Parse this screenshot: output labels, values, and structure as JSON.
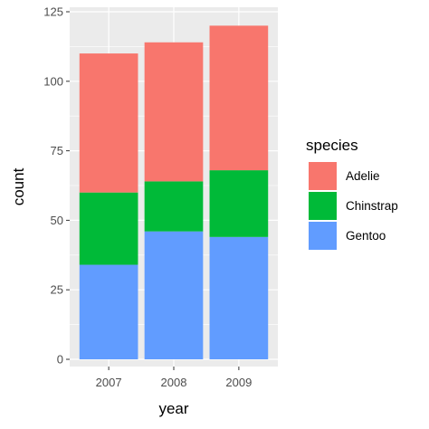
{
  "chart_data": {
    "type": "bar",
    "stacked": true,
    "xlabel": "year",
    "ylabel": "count",
    "categories": [
      "2007",
      "2008",
      "2009"
    ],
    "ylim": [
      0,
      125
    ],
    "y_ticks": [
      0,
      25,
      50,
      75,
      100,
      125
    ],
    "series": [
      {
        "name": "Gentoo",
        "color": "#619CFF",
        "values": [
          34,
          46,
          44
        ]
      },
      {
        "name": "Chinstrap",
        "color": "#00BA38",
        "values": [
          26,
          18,
          24
        ]
      },
      {
        "name": "Adelie",
        "color": "#F8766D",
        "values": [
          50,
          50,
          52
        ]
      }
    ],
    "legend": {
      "title": "species",
      "position": "right",
      "order": [
        "Adelie",
        "Chinstrap",
        "Gentoo"
      ]
    },
    "grid": true,
    "panel_background": "#EBEBEB",
    "grid_color": "#FFFFFF"
  }
}
